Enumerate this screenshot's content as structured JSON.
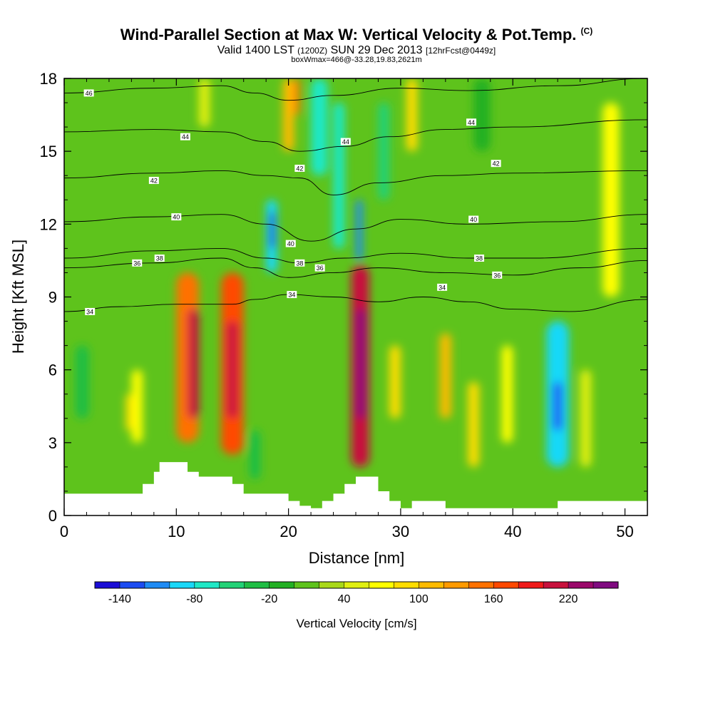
{
  "title": {
    "main": "Wind-Parallel Section at Max W: Vertical Velocity & Pot.Temp.",
    "copyright": "(C)",
    "valid_prefix": "Valid 1400 LST",
    "utc": "(1200Z)",
    "date": "SUN 29 Dec 2013",
    "forecast": "[12hrFcst@0449z]",
    "box_info": "boxWmax=466@-33.28,19.83,2621m"
  },
  "chart_data": {
    "type": "heatmap",
    "xlabel": "Distance [nm]",
    "ylabel": "Height [Kft MSL]",
    "xlim": [
      0,
      52
    ],
    "ylim": [
      0,
      18
    ],
    "x_ticks": [
      0,
      10,
      20,
      30,
      40,
      50
    ],
    "y_ticks": [
      0,
      3,
      6,
      9,
      12,
      15,
      18
    ],
    "colorbar": {
      "title": "Vertical Velocity [cm/s]",
      "min": -160,
      "max": 260,
      "tick_labels": [
        "-140",
        "-80",
        "-20",
        "40",
        "100",
        "160",
        "220"
      ],
      "tick_values": [
        -140,
        -80,
        -20,
        40,
        100,
        160,
        220
      ],
      "colors": [
        "#1a0dd6",
        "#1c4cf2",
        "#1e8bf5",
        "#19d8f8",
        "#1ee8c6",
        "#22d276",
        "#1fbe44",
        "#22b023",
        "#5ec31c",
        "#a9d817",
        "#e0ef10",
        "#ffff00",
        "#ffdd00",
        "#ffbb00",
        "#ff9a00",
        "#ff7100",
        "#ff4800",
        "#f01919",
        "#c8103c",
        "#9b086a",
        "#800a80"
      ]
    },
    "background_w": 10,
    "cells": [
      {
        "x": [
          10,
          12
        ],
        "y": [
          3,
          10
        ],
        "w": 150
      },
      {
        "x": [
          14,
          16
        ],
        "y": [
          2.5,
          10
        ],
        "w": 170
      },
      {
        "x": [
          11,
          12
        ],
        "y": [
          4,
          8.5
        ],
        "w": 210
      },
      {
        "x": [
          14.5,
          15.5
        ],
        "y": [
          4,
          8
        ],
        "w": 210
      },
      {
        "x": [
          25.6,
          27.2
        ],
        "y": [
          2,
          10.3
        ],
        "w": 200
      },
      {
        "x": [
          26.1,
          26.8
        ],
        "y": [
          4,
          8.5
        ],
        "w": 250
      },
      {
        "x": [
          19.5,
          20.5
        ],
        "y": [
          15,
          18
        ],
        "w": 100
      },
      {
        "x": [
          20.5,
          21
        ],
        "y": [
          16.5,
          18
        ],
        "w": 150
      },
      {
        "x": [
          22,
          23.5
        ],
        "y": [
          14,
          18
        ],
        "w": -80
      },
      {
        "x": [
          24,
          25
        ],
        "y": [
          11,
          17
        ],
        "w": -70
      },
      {
        "x": [
          26,
          26.6
        ],
        "y": [
          10.5,
          13
        ],
        "w": -110
      },
      {
        "x": [
          18,
          19
        ],
        "y": [
          10,
          13
        ],
        "w": -90
      },
      {
        "x": [
          18.3,
          18.8
        ],
        "y": [
          11,
          12.5
        ],
        "w": -130
      },
      {
        "x": [
          30.5,
          31.5
        ],
        "y": [
          15,
          18
        ],
        "w": 90
      },
      {
        "x": [
          28,
          29
        ],
        "y": [
          13,
          17
        ],
        "w": -50
      },
      {
        "x": [
          33.5,
          34.5
        ],
        "y": [
          4,
          7.5
        ],
        "w": 110
      },
      {
        "x": [
          36,
          37
        ],
        "y": [
          2,
          5.5
        ],
        "w": 90
      },
      {
        "x": [
          43,
          45
        ],
        "y": [
          2,
          8
        ],
        "w": -90
      },
      {
        "x": [
          43.6,
          44.4
        ],
        "y": [
          3.5,
          5.5
        ],
        "w": -130
      },
      {
        "x": [
          6,
          7
        ],
        "y": [
          3,
          6
        ],
        "w": 60
      },
      {
        "x": [
          1,
          2.2
        ],
        "y": [
          4,
          7
        ],
        "w": -30
      },
      {
        "x": [
          5.5,
          6
        ],
        "y": [
          3.5,
          5
        ],
        "w": 95
      },
      {
        "x": [
          39,
          40
        ],
        "y": [
          3,
          7
        ],
        "w": 60
      },
      {
        "x": [
          46,
          47
        ],
        "y": [
          2,
          6
        ],
        "w": 50
      },
      {
        "x": [
          36.5,
          38
        ],
        "y": [
          15,
          18
        ],
        "w": -20
      },
      {
        "x": [
          16.5,
          17.5
        ],
        "y": [
          1.5,
          3.5
        ],
        "w": -40
      },
      {
        "x": [
          29,
          30
        ],
        "y": [
          4,
          7
        ],
        "w": 80
      },
      {
        "x": [
          48,
          49.5
        ],
        "y": [
          9,
          17
        ],
        "w": 60
      },
      {
        "x": [
          12,
          13
        ],
        "y": [
          16,
          18
        ],
        "w": 50
      }
    ],
    "terrain": [
      [
        0,
        0.9
      ],
      [
        6,
        0.9
      ],
      [
        7,
        1.3
      ],
      [
        8,
        1.8
      ],
      [
        8.5,
        2.2
      ],
      [
        10.5,
        2.2
      ],
      [
        11,
        1.8
      ],
      [
        12,
        1.6
      ],
      [
        14.5,
        1.6
      ],
      [
        15,
        1.3
      ],
      [
        16,
        0.9
      ],
      [
        19,
        0.9
      ],
      [
        20,
        0.6
      ],
      [
        21,
        0.4
      ],
      [
        22,
        0.3
      ],
      [
        23,
        0.6
      ],
      [
        24,
        0.9
      ],
      [
        25,
        1.3
      ],
      [
        26,
        1.6
      ],
      [
        27,
        1.6
      ],
      [
        28,
        1.0
      ],
      [
        29,
        0.6
      ],
      [
        30,
        0.3
      ],
      [
        31,
        0.6
      ],
      [
        33,
        0.6
      ],
      [
        34,
        0.3
      ],
      [
        43,
        0.3
      ],
      [
        44,
        0.6
      ],
      [
        52,
        0.6
      ]
    ],
    "isentropes": [
      {
        "label": "34",
        "points": [
          [
            0,
            8.4
          ],
          [
            5,
            8.6
          ],
          [
            10,
            8.7
          ],
          [
            15,
            8.7
          ],
          [
            17,
            8.9
          ],
          [
            20,
            9.1
          ],
          [
            24,
            9.0
          ],
          [
            28,
            8.8
          ],
          [
            32,
            9.0
          ],
          [
            36,
            8.8
          ],
          [
            40,
            8.5
          ],
          [
            45,
            8.4
          ],
          [
            52,
            8.9
          ]
        ],
        "label_at": [
          [
            2.3,
            8.4
          ],
          [
            20.3,
            9.1
          ],
          [
            33.7,
            9.4
          ]
        ]
      },
      {
        "label": "36",
        "points": [
          [
            0,
            10.2
          ],
          [
            8,
            10.4
          ],
          [
            14,
            10.6
          ],
          [
            17,
            10.2
          ],
          [
            20,
            9.8
          ],
          [
            24,
            10.0
          ],
          [
            28,
            10.2
          ],
          [
            34,
            10.0
          ],
          [
            40,
            9.9
          ],
          [
            46,
            10.2
          ],
          [
            52,
            10.5
          ]
        ],
        "label_at": [
          [
            6.5,
            10.4
          ],
          [
            22.8,
            10.2
          ],
          [
            38.6,
            9.9
          ]
        ]
      },
      {
        "label": "38",
        "points": [
          [
            0,
            10.6
          ],
          [
            8,
            10.9
          ],
          [
            14,
            11.0
          ],
          [
            18,
            10.6
          ],
          [
            21,
            10.4
          ],
          [
            25,
            10.6
          ],
          [
            30,
            10.8
          ],
          [
            36,
            10.6
          ],
          [
            42,
            10.6
          ],
          [
            52,
            11.0
          ]
        ],
        "label_at": [
          [
            8.5,
            10.6
          ],
          [
            21,
            10.4
          ],
          [
            37,
            10.6
          ]
        ]
      },
      {
        "label": "40",
        "points": [
          [
            0,
            12.1
          ],
          [
            8,
            12.3
          ],
          [
            14,
            12.4
          ],
          [
            18,
            12.0
          ],
          [
            22,
            11.3
          ],
          [
            26,
            11.8
          ],
          [
            30,
            12.2
          ],
          [
            36,
            12.0
          ],
          [
            44,
            12.1
          ],
          [
            52,
            12.4
          ]
        ],
        "label_at": [
          [
            10,
            12.3
          ],
          [
            20.2,
            11.2
          ],
          [
            36.5,
            12.2
          ]
        ]
      },
      {
        "label": "42",
        "points": [
          [
            0,
            13.9
          ],
          [
            8,
            14.1
          ],
          [
            14,
            14.2
          ],
          [
            18,
            14.0
          ],
          [
            21,
            13.9
          ],
          [
            24,
            13.2
          ],
          [
            28,
            13.7
          ],
          [
            34,
            14.0
          ],
          [
            40,
            14.1
          ],
          [
            52,
            14.2
          ]
        ],
        "label_at": [
          [
            8,
            13.8
          ],
          [
            21,
            14.3
          ],
          [
            38.5,
            14.5
          ]
        ]
      },
      {
        "label": "44",
        "points": [
          [
            0,
            15.8
          ],
          [
            8,
            15.9
          ],
          [
            14,
            15.8
          ],
          [
            18,
            15.4
          ],
          [
            21,
            15.0
          ],
          [
            25,
            15.2
          ],
          [
            29,
            15.6
          ],
          [
            34,
            15.9
          ],
          [
            40,
            16.0
          ],
          [
            52,
            16.3
          ]
        ],
        "label_at": [
          [
            10.8,
            15.6
          ],
          [
            25.1,
            15.4
          ],
          [
            36.3,
            16.2
          ]
        ]
      },
      {
        "label": "46",
        "points": [
          [
            0,
            17.4
          ],
          [
            8,
            17.6
          ],
          [
            14,
            17.7
          ],
          [
            17,
            17.4
          ],
          [
            20,
            17.1
          ],
          [
            24,
            17.3
          ],
          [
            30,
            17.6
          ],
          [
            36,
            17.5
          ],
          [
            44,
            17.7
          ],
          [
            52,
            18.0
          ]
        ],
        "label_at": [
          [
            2.2,
            17.4
          ]
        ]
      }
    ]
  }
}
